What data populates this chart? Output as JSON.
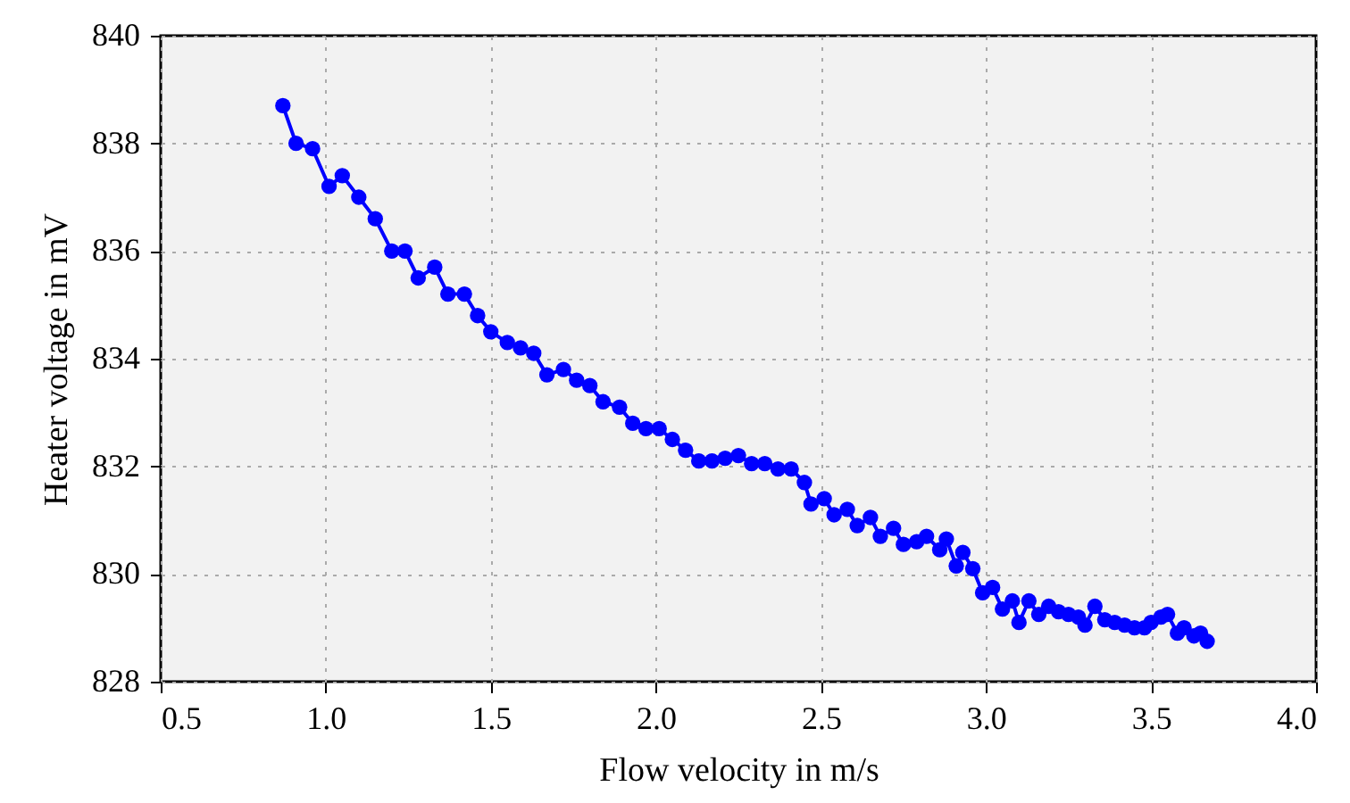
{
  "chart_data": {
    "type": "line",
    "xlabel": "Flow velocity in m/s",
    "ylabel": "Heater voltage in mV",
    "xlim": [
      0.5,
      4.0
    ],
    "xticks": [
      {
        "value": 0.5,
        "label": "0.5"
      },
      {
        "value": 1.0,
        "label": "1.0"
      },
      {
        "value": 1.5,
        "label": "1.5"
      },
      {
        "value": 2.0,
        "label": "2.0"
      },
      {
        "value": 2.5,
        "label": "2.5"
      },
      {
        "value": 3.0,
        "label": "3.0"
      },
      {
        "value": 3.5,
        "label": "3.5"
      },
      {
        "value": 4.0,
        "label": "4.0"
      }
    ],
    "ylim": [
      828,
      840
    ],
    "yticks": [
      828,
      830,
      832,
      834,
      836,
      838,
      840
    ],
    "grid": true,
    "marker": "circle",
    "line_style": "solid",
    "series": [
      {
        "color": "#0000ff",
        "x": [
          0.87,
          0.91,
          0.96,
          1.01,
          1.05,
          1.1,
          1.15,
          1.2,
          1.24,
          1.28,
          1.33,
          1.37,
          1.42,
          1.46,
          1.5,
          1.55,
          1.59,
          1.63,
          1.67,
          1.72,
          1.76,
          1.8,
          1.84,
          1.89,
          1.93,
          1.97,
          2.01,
          2.05,
          2.09,
          2.13,
          2.17,
          2.21,
          2.25,
          2.29,
          2.33,
          2.37,
          2.41,
          2.45,
          2.47,
          2.51,
          2.54,
          2.58,
          2.61,
          2.65,
          2.68,
          2.72,
          2.75,
          2.79,
          2.82,
          2.86,
          2.88,
          2.91,
          2.93,
          2.96,
          2.99,
          3.02,
          3.05,
          3.08,
          3.1,
          3.13,
          3.16,
          3.19,
          3.22,
          3.25,
          3.28,
          3.3,
          3.33,
          3.36,
          3.39,
          3.42,
          3.45,
          3.48,
          3.5,
          3.53,
          3.55,
          3.58,
          3.6,
          3.63,
          3.65,
          3.67
        ],
        "values": [
          838.7,
          838.0,
          837.9,
          837.2,
          837.4,
          837.0,
          836.6,
          836.0,
          836.0,
          835.5,
          835.7,
          835.2,
          835.2,
          834.8,
          834.5,
          834.3,
          834.2,
          834.1,
          833.7,
          833.8,
          833.6,
          833.5,
          833.2,
          833.1,
          832.8,
          832.7,
          832.7,
          832.5,
          832.3,
          832.1,
          832.1,
          832.15,
          832.2,
          832.05,
          832.05,
          831.95,
          831.95,
          831.7,
          831.3,
          831.4,
          831.1,
          831.2,
          830.9,
          831.05,
          830.7,
          830.85,
          830.55,
          830.6,
          830.7,
          830.45,
          830.65,
          830.15,
          830.4,
          830.1,
          829.65,
          829.75,
          829.35,
          829.5,
          829.1,
          829.5,
          829.25,
          829.4,
          829.3,
          829.25,
          829.2,
          829.05,
          829.4,
          829.15,
          829.1,
          829.05,
          829.0,
          829.0,
          829.1,
          829.2,
          829.25,
          828.9,
          829.0,
          828.85,
          828.9,
          828.75
        ]
      }
    ]
  }
}
